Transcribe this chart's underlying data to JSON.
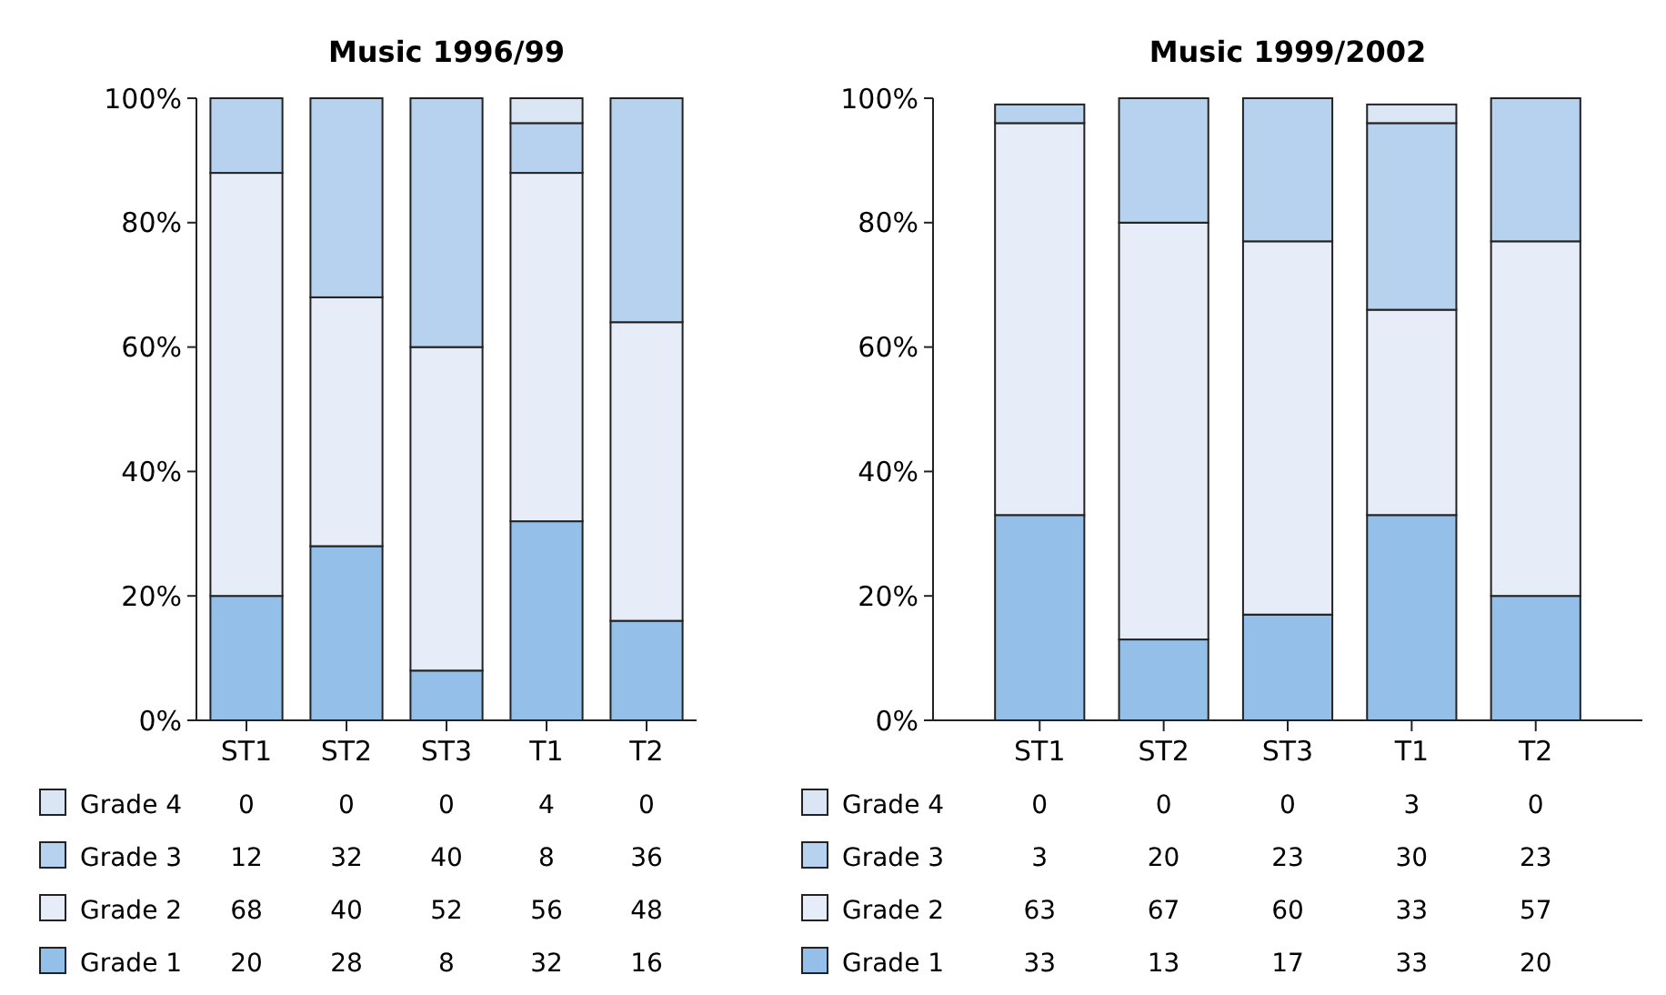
{
  "chart_data": [
    {
      "type": "bar",
      "title": "Music 1996/99",
      "stacked": true,
      "categories": [
        "ST1",
        "ST2",
        "ST3",
        "T1",
        "T2"
      ],
      "ylim": [
        0,
        100
      ],
      "yticks": [
        {
          "value": 0,
          "label": "0%"
        },
        {
          "value": 20,
          "label": "20%"
        },
        {
          "value": 40,
          "label": "40%"
        },
        {
          "value": 60,
          "label": "60%"
        },
        {
          "value": 80,
          "label": "80%"
        },
        {
          "value": 100,
          "label": "100%"
        }
      ],
      "data_labels": true,
      "legend": "bottom",
      "grid": false,
      "series": [
        {
          "name": "Grade 1",
          "color": "#94bfe8",
          "values": [
            20,
            28,
            8,
            32,
            16
          ]
        },
        {
          "name": "Grade 2",
          "color": "#e6edf8",
          "values": [
            68,
            40,
            52,
            56,
            48
          ]
        },
        {
          "name": "Grade 3",
          "color": "#b7d2ef",
          "values": [
            12,
            32,
            40,
            8,
            36
          ]
        },
        {
          "name": "Grade 4",
          "color": "#dbe6f5",
          "values": [
            0,
            0,
            0,
            4,
            0
          ]
        }
      ]
    },
    {
      "type": "bar",
      "title": "Music 1999/2002",
      "stacked": true,
      "categories": [
        "ST1",
        "ST2",
        "ST3",
        "T1",
        "T2"
      ],
      "ylim": [
        0,
        100
      ],
      "yticks": [
        {
          "value": 0,
          "label": "0%"
        },
        {
          "value": 20,
          "label": "20%"
        },
        {
          "value": 40,
          "label": "40%"
        },
        {
          "value": 60,
          "label": "60%"
        },
        {
          "value": 80,
          "label": "80%"
        },
        {
          "value": 100,
          "label": "100%"
        }
      ],
      "data_labels": true,
      "legend": "bottom",
      "grid": false,
      "series": [
        {
          "name": "Grade 1",
          "color": "#94bfe8",
          "values": [
            33,
            13,
            17,
            33,
            20
          ]
        },
        {
          "name": "Grade 2",
          "color": "#e6edf8",
          "values": [
            63,
            67,
            60,
            33,
            57
          ]
        },
        {
          "name": "Grade 3",
          "color": "#b7d2ef",
          "values": [
            3,
            20,
            23,
            30,
            23
          ]
        },
        {
          "name": "Grade 4",
          "color": "#dbe6f5",
          "values": [
            0,
            0,
            0,
            3,
            0
          ]
        }
      ]
    }
  ]
}
